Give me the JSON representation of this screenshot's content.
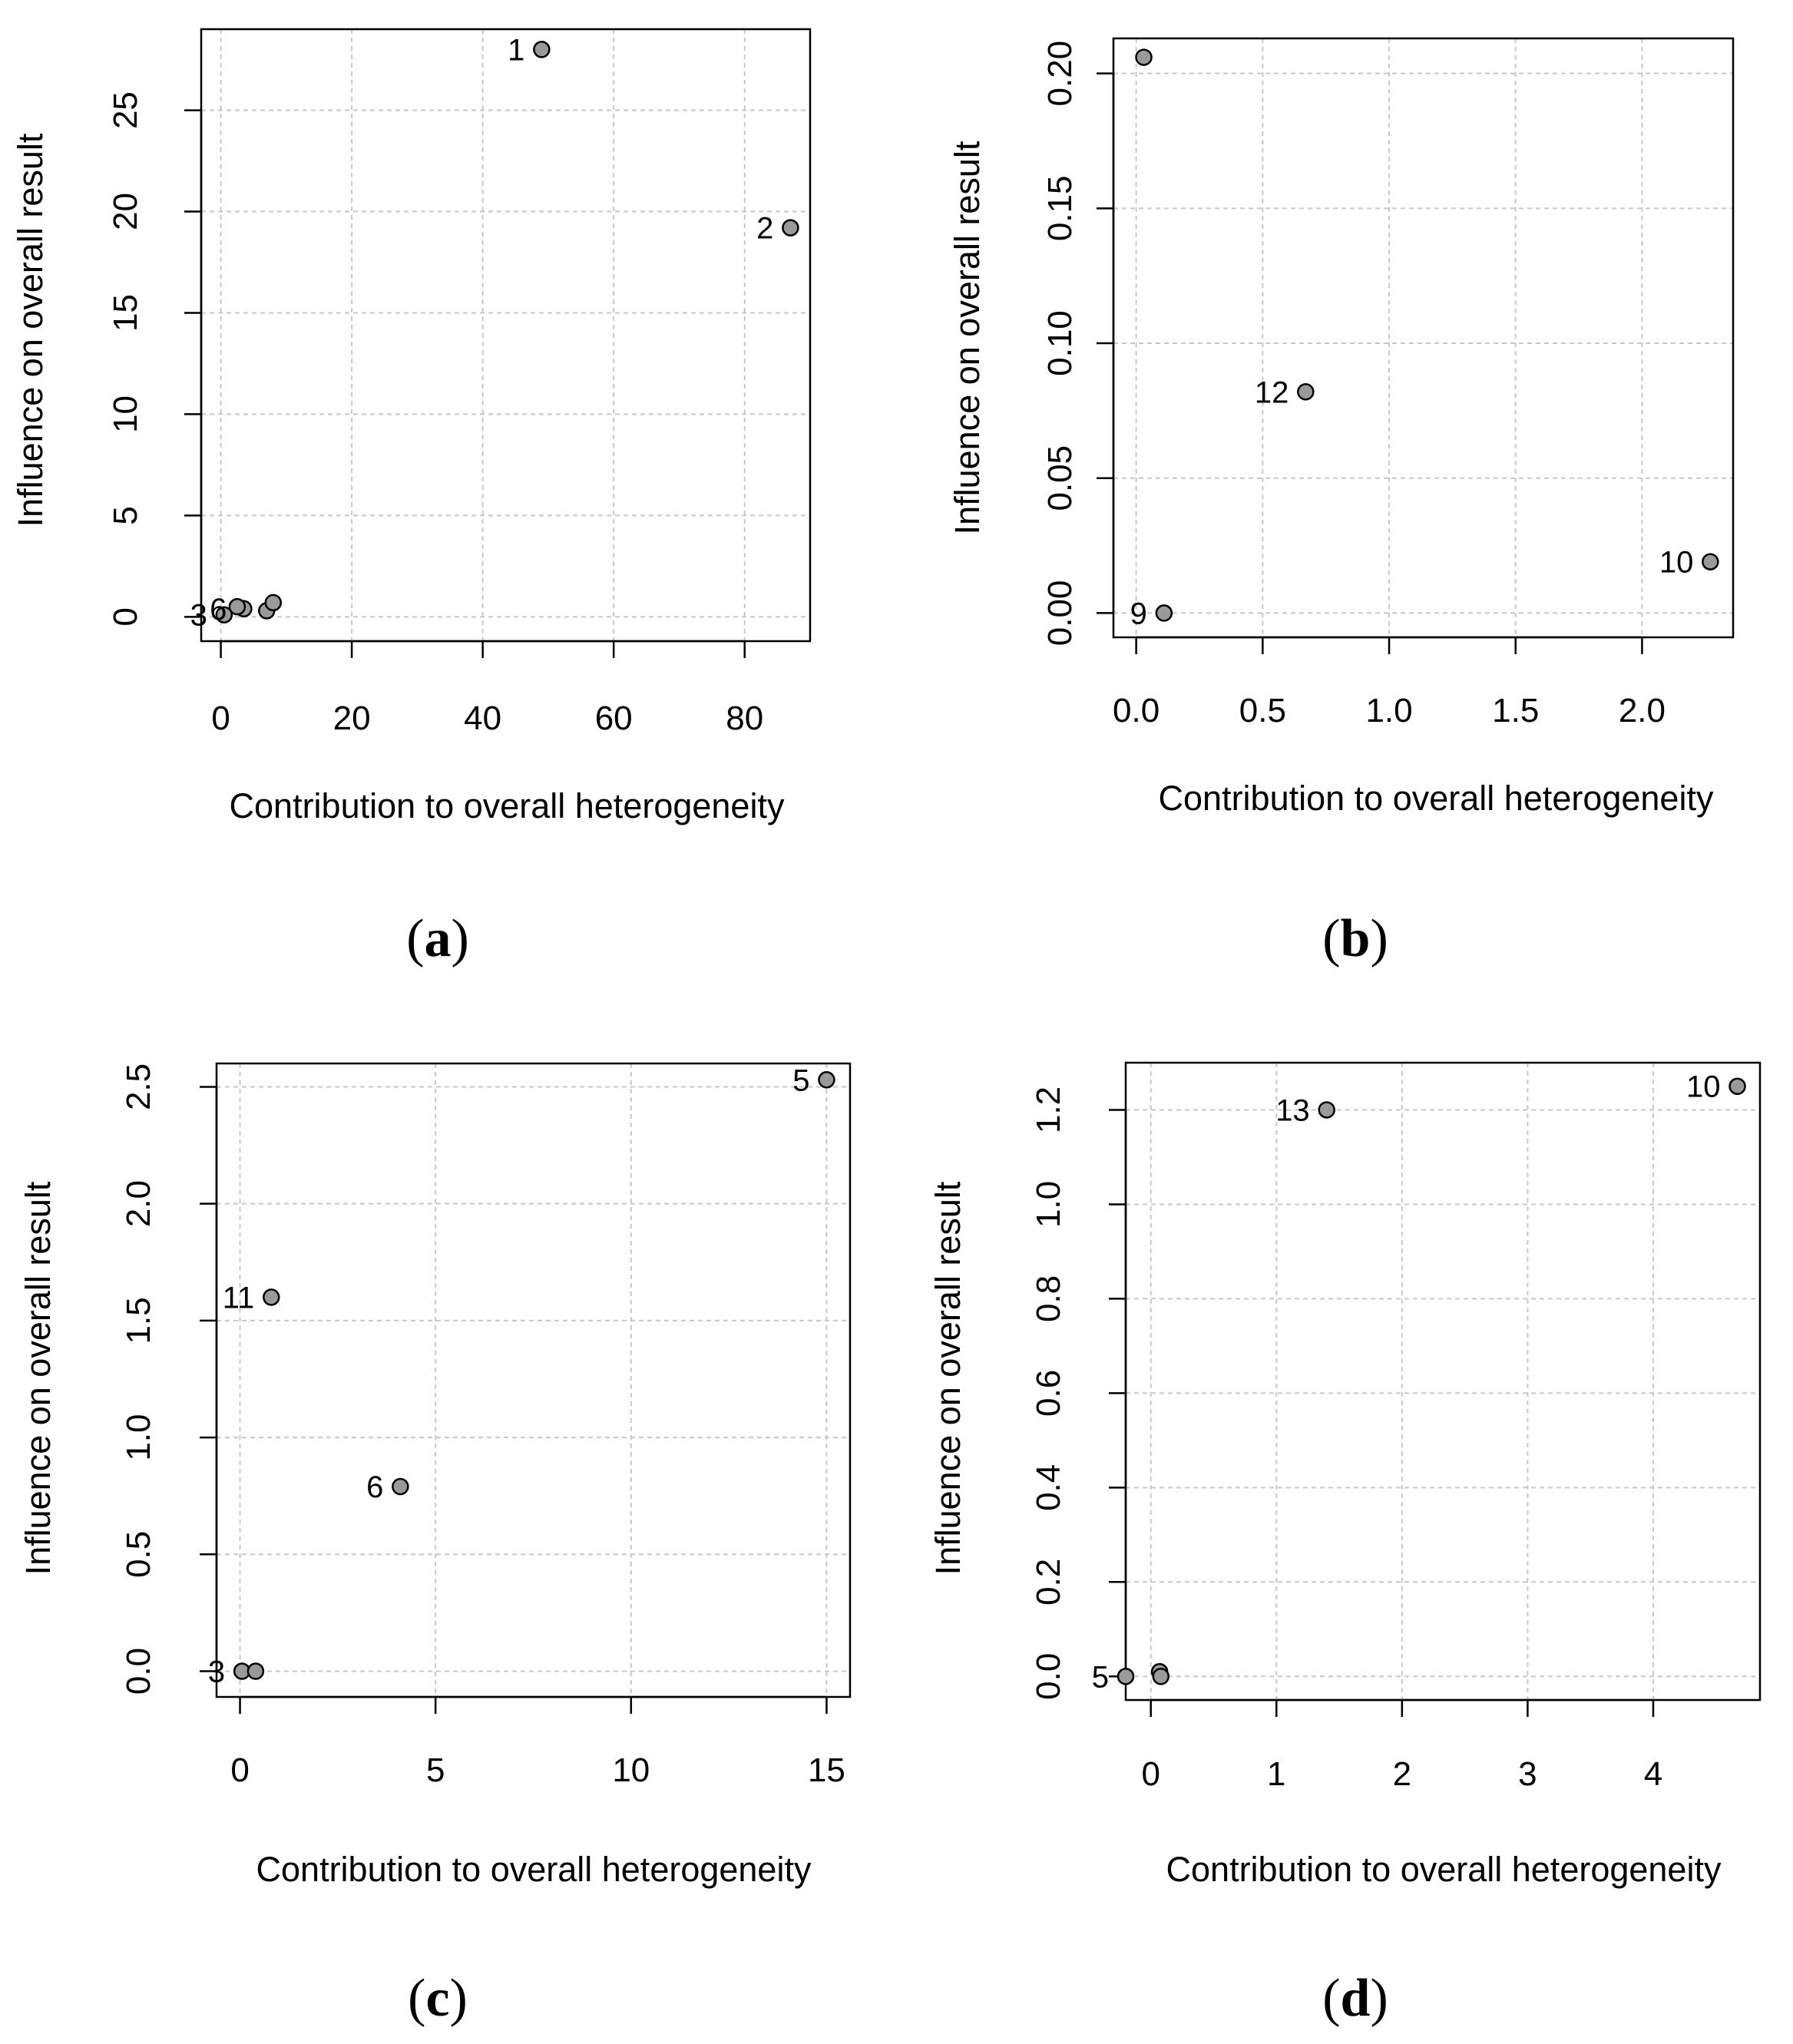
{
  "chart_data": [
    {
      "panel": "a",
      "caption": {
        "open": "(",
        "letter": "a",
        "close": ")"
      },
      "type": "scatter",
      "xlabel": "Contribution to overall heterogeneity",
      "ylabel": "Influence on overall result",
      "xlim": [
        -3,
        90
      ],
      "ylim": [
        -1.2,
        29
      ],
      "xticks": [
        0,
        20,
        40,
        60,
        80
      ],
      "xtick_labels": [
        "0",
        "20",
        "40",
        "60",
        "80"
      ],
      "yticks": [
        0,
        5,
        10,
        15,
        20,
        25
      ],
      "ytick_labels": [
        "0",
        "5",
        "10",
        "15",
        "20",
        "25"
      ],
      "grid": true,
      "points": [
        {
          "x": 49,
          "y": 28,
          "label": "1"
        },
        {
          "x": 87,
          "y": 19.2,
          "label": "2"
        },
        {
          "x": 0.5,
          "y": 0.1,
          "label": "3"
        },
        {
          "x": 3.5,
          "y": 0.4,
          "label": "6"
        },
        {
          "x": 2.5,
          "y": 0.5,
          "label": ""
        },
        {
          "x": 7,
          "y": 0.3,
          "label": ""
        },
        {
          "x": 8,
          "y": 0.7,
          "label": ""
        }
      ]
    },
    {
      "panel": "b",
      "caption": {
        "open": "(",
        "letter": "b",
        "close": ")"
      },
      "type": "scatter",
      "xlabel": "Contribution to overall heterogeneity",
      "ylabel": "Influence on overall result",
      "xlim": [
        -0.09,
        2.36
      ],
      "ylim": [
        -0.009,
        0.213
      ],
      "xticks": [
        0,
        0.5,
        1,
        1.5,
        2
      ],
      "xtick_labels": [
        "0.0",
        "0.5",
        "1.0",
        "1.5",
        "2.0"
      ],
      "yticks": [
        0,
        0.05,
        0.1,
        0.15,
        0.2
      ],
      "ytick_labels": [
        "0.00",
        "0.05",
        "0.10",
        "0.15",
        "0.20"
      ],
      "grid": true,
      "points": [
        {
          "x": 0.03,
          "y": 0.206,
          "label": ""
        },
        {
          "x": 0.67,
          "y": 0.082,
          "label": "12"
        },
        {
          "x": 2.27,
          "y": 0.019,
          "label": "10"
        },
        {
          "x": 0.11,
          "y": 0.0,
          "label": "9"
        }
      ]
    },
    {
      "panel": "c",
      "caption": {
        "open": "(",
        "letter": "c",
        "close": ")"
      },
      "type": "scatter",
      "xlabel": "Contribution to overall heterogeneity",
      "ylabel": "Influence on overall result",
      "xlim": [
        -0.6,
        15.6
      ],
      "ylim": [
        -0.11,
        2.6
      ],
      "xticks": [
        0,
        5,
        10,
        15
      ],
      "xtick_labels": [
        "0",
        "5",
        "10",
        "15"
      ],
      "yticks": [
        0,
        0.5,
        1,
        1.5,
        2,
        2.5
      ],
      "ytick_labels": [
        "0.0",
        "0.5",
        "1.0",
        "1.5",
        "2.0",
        "2.5"
      ],
      "grid": true,
      "points": [
        {
          "x": 15,
          "y": 2.53,
          "label": "5"
        },
        {
          "x": 0.8,
          "y": 1.6,
          "label": "11"
        },
        {
          "x": 4.1,
          "y": 0.79,
          "label": "6"
        },
        {
          "x": 0.05,
          "y": 0.0,
          "label": "3"
        },
        {
          "x": 0.4,
          "y": 0.0,
          "label": ""
        }
      ]
    },
    {
      "panel": "d",
      "caption": {
        "open": "(",
        "letter": "d",
        "close": ")"
      },
      "type": "scatter",
      "xlabel": "Contribution to overall heterogeneity",
      "ylabel": "Influence on overall result",
      "xlim": [
        -0.2,
        4.85
      ],
      "ylim": [
        -0.05,
        1.3
      ],
      "xticks": [
        0,
        1,
        2,
        3,
        4
      ],
      "xtick_labels": [
        "0",
        "1",
        "2",
        "3",
        "4"
      ],
      "yticks": [
        0,
        0.2,
        0.4,
        0.6,
        0.8,
        1,
        1.2
      ],
      "ytick_labels": [
        "0.0",
        "0.2",
        "0.4",
        "0.6",
        "0.8",
        "1.0",
        "1.2"
      ],
      "grid": true,
      "points": [
        {
          "x": 4.67,
          "y": 1.25,
          "label": "10"
        },
        {
          "x": 1.4,
          "y": 1.2,
          "label": "13"
        },
        {
          "x": 0.07,
          "y": 0.01,
          "label": ""
        },
        {
          "x": 0.08,
          "y": 0.0,
          "label": ""
        },
        {
          "x": -0.2,
          "y": 0.0,
          "label": "5"
        }
      ]
    }
  ]
}
